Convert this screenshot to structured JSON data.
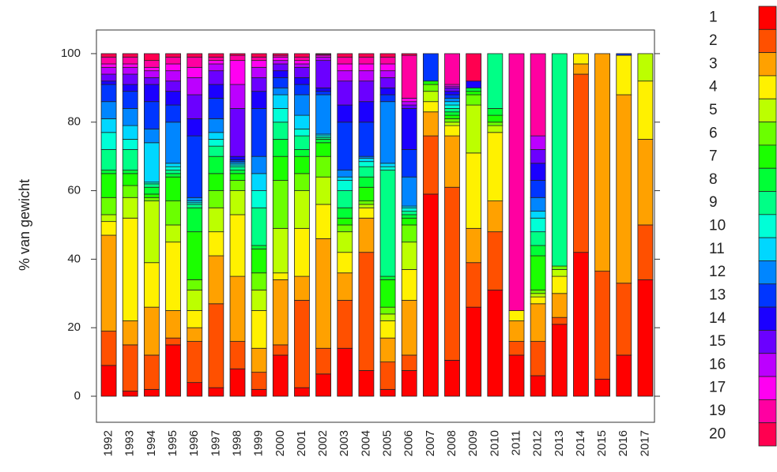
{
  "chart_data": {
    "type": "bar",
    "stacked": true,
    "ylabel": "% van gewicht",
    "categories": [
      "1992",
      "1993",
      "1994",
      "1995",
      "1996",
      "1997",
      "1998",
      "1999",
      "2000",
      "2001",
      "2002",
      "2003",
      "2004",
      "2005",
      "2006",
      "2007",
      "2008",
      "2009",
      "2010",
      "2011",
      "2012",
      "2013",
      "2014",
      "2015",
      "2016",
      "2017"
    ],
    "ylim": [
      -7.6,
      106.9
    ],
    "yticks": [
      0,
      20,
      40,
      60,
      80,
      100
    ],
    "series": [
      {
        "name": "1",
        "color": "#FF0000",
        "values": [
          9,
          1.5,
          2,
          15,
          4,
          2.5,
          8,
          2,
          12,
          2.5,
          6.5,
          14,
          7.5,
          2,
          7.5,
          59,
          10.5,
          26,
          31,
          12,
          6,
          21,
          42,
          5,
          12,
          34
        ]
      },
      {
        "name": "2",
        "color": "#FF5000",
        "values": [
          10,
          13.5,
          10,
          2,
          12,
          24.5,
          8,
          5,
          3,
          25.5,
          7.5,
          14,
          34.5,
          8,
          4.5,
          17,
          50.5,
          13,
          17,
          4,
          10,
          2,
          52,
          31.5,
          21,
          16
        ]
      },
      {
        "name": "3",
        "color": "#FFA100",
        "values": [
          28,
          7,
          14,
          8,
          4,
          14,
          19,
          7,
          19,
          7,
          32,
          8,
          10,
          7,
          16,
          7,
          15,
          10,
          9,
          6,
          11,
          7,
          3,
          63.5,
          55,
          25
        ]
      },
      {
        "name": "4",
        "color": "#FFF100",
        "values": [
          4,
          30,
          13,
          20,
          5,
          7,
          18,
          11,
          2,
          14,
          10,
          6,
          3,
          5,
          9,
          3,
          3,
          22,
          20,
          3,
          2,
          5,
          3,
          0,
          11.5,
          17
        ]
      },
      {
        "name": "5",
        "color": "#BCFF00",
        "values": [
          2,
          6,
          18,
          5,
          6,
          7,
          7,
          6,
          13,
          11,
          8,
          6,
          1,
          2,
          8,
          3,
          1,
          14,
          2,
          0,
          1,
          2,
          0,
          0,
          0,
          8
        ]
      },
      {
        "name": "6",
        "color": "#6BFF00",
        "values": [
          5,
          3.5,
          1,
          7,
          3,
          5,
          3,
          5,
          14,
          5,
          6,
          2,
          1,
          2,
          5,
          2,
          1,
          3,
          1,
          0,
          1,
          1,
          0,
          0,
          0,
          0
        ]
      },
      {
        "name": "7",
        "color": "#1BFF00",
        "values": [
          7,
          3.5,
          1,
          7,
          14,
          5,
          2,
          7,
          7,
          5,
          4,
          2,
          4,
          8,
          2,
          1,
          1,
          1,
          2,
          0,
          10,
          0,
          0,
          0,
          0,
          0
        ]
      },
      {
        "name": "8",
        "color": "#00FF36",
        "values": [
          1,
          1,
          2,
          1,
          7,
          5,
          1,
          1,
          5,
          2,
          1,
          3,
          3,
          1,
          1,
          0,
          1,
          1,
          2,
          0,
          3,
          0,
          0,
          0,
          0,
          0
        ]
      },
      {
        "name": "9",
        "color": "#00FF86",
        "values": [
          6,
          6,
          1,
          1,
          1,
          3,
          1,
          11,
          5,
          4,
          0.5,
          5,
          3,
          31,
          1,
          0,
          1,
          0,
          16,
          0,
          4,
          62,
          0,
          0,
          0,
          0
        ]
      },
      {
        "name": "10",
        "color": "#00FFD7",
        "values": [
          5,
          3,
          0.5,
          1,
          0.5,
          2,
          0.5,
          5,
          4,
          2,
          0.5,
          3,
          1.5,
          1,
          1,
          0,
          1,
          0,
          0,
          0,
          4,
          0,
          0,
          0,
          0,
          0
        ]
      },
      {
        "name": "11",
        "color": "#00D7FF",
        "values": [
          4,
          4,
          11.5,
          1,
          0.5,
          2,
          0.5,
          5,
          4,
          4,
          0.5,
          1,
          1,
          1,
          0.5,
          0,
          1,
          0,
          0,
          0,
          2,
          0,
          0,
          0,
          0,
          0
        ]
      },
      {
        "name": "12",
        "color": "#0086FF",
        "values": [
          5,
          5,
          4,
          12,
          1,
          4,
          0.5,
          5,
          2,
          6,
          11.5,
          2,
          0.5,
          18,
          8.5,
          0,
          1,
          0,
          0,
          0,
          4,
          0,
          0,
          0,
          0,
          0
        ]
      },
      {
        "name": "13",
        "color": "#0036FF",
        "values": [
          5,
          5,
          8,
          5,
          18,
          6,
          0.5,
          14,
          3,
          3,
          1,
          14,
          10,
          2,
          8,
          8,
          1,
          0,
          0,
          0,
          5,
          0,
          0,
          0,
          0.5,
          0
        ]
      },
      {
        "name": "14",
        "color": "#1B00FF",
        "values": [
          1,
          2,
          5,
          4,
          5,
          4,
          1,
          5,
          2,
          2,
          1,
          5,
          6,
          2,
          12,
          0,
          1,
          2,
          0,
          0,
          5,
          0,
          0,
          0,
          0,
          0
        ]
      },
      {
        "name": "15",
        "color": "#6B00FF",
        "values": [
          2,
          3,
          2,
          3,
          7,
          4,
          14,
          4,
          2,
          3,
          8,
          7,
          6,
          3,
          1,
          0,
          1,
          0,
          0,
          0,
          4,
          0,
          0,
          0,
          0,
          0
        ]
      },
      {
        "name": "16",
        "color": "#BC00FF",
        "values": [
          2,
          2,
          2,
          3,
          5,
          2,
          7,
          3,
          1,
          1,
          1,
          3,
          3,
          2,
          1,
          0,
          0.5,
          0,
          0,
          0,
          4,
          0,
          0,
          0,
          0,
          0
        ]
      },
      {
        "name": "17",
        "color": "#FF00F1",
        "values": [
          1,
          1,
          1,
          2,
          3,
          1,
          7,
          2,
          1,
          1,
          0.5,
          2,
          2,
          2,
          1,
          0,
          0.5,
          0,
          0,
          0,
          0,
          0,
          0,
          0,
          0,
          0
        ]
      },
      {
        "name": "19",
        "color": "#FF00A1",
        "values": [
          2,
          2,
          2,
          2,
          3,
          1,
          1.5,
          1,
          0.5,
          1,
          0.3,
          2,
          2,
          2,
          12.5,
          0,
          9,
          0,
          0,
          75,
          24,
          0,
          0,
          0,
          0,
          0
        ]
      },
      {
        "name": "20",
        "color": "#FF0050",
        "values": [
          1,
          1,
          2,
          1,
          1,
          1,
          0.5,
          1,
          0.5,
          1,
          0.2,
          1,
          1,
          1,
          0.5,
          0,
          0,
          8,
          0,
          0,
          0,
          0,
          0,
          0,
          0,
          0
        ]
      }
    ]
  }
}
